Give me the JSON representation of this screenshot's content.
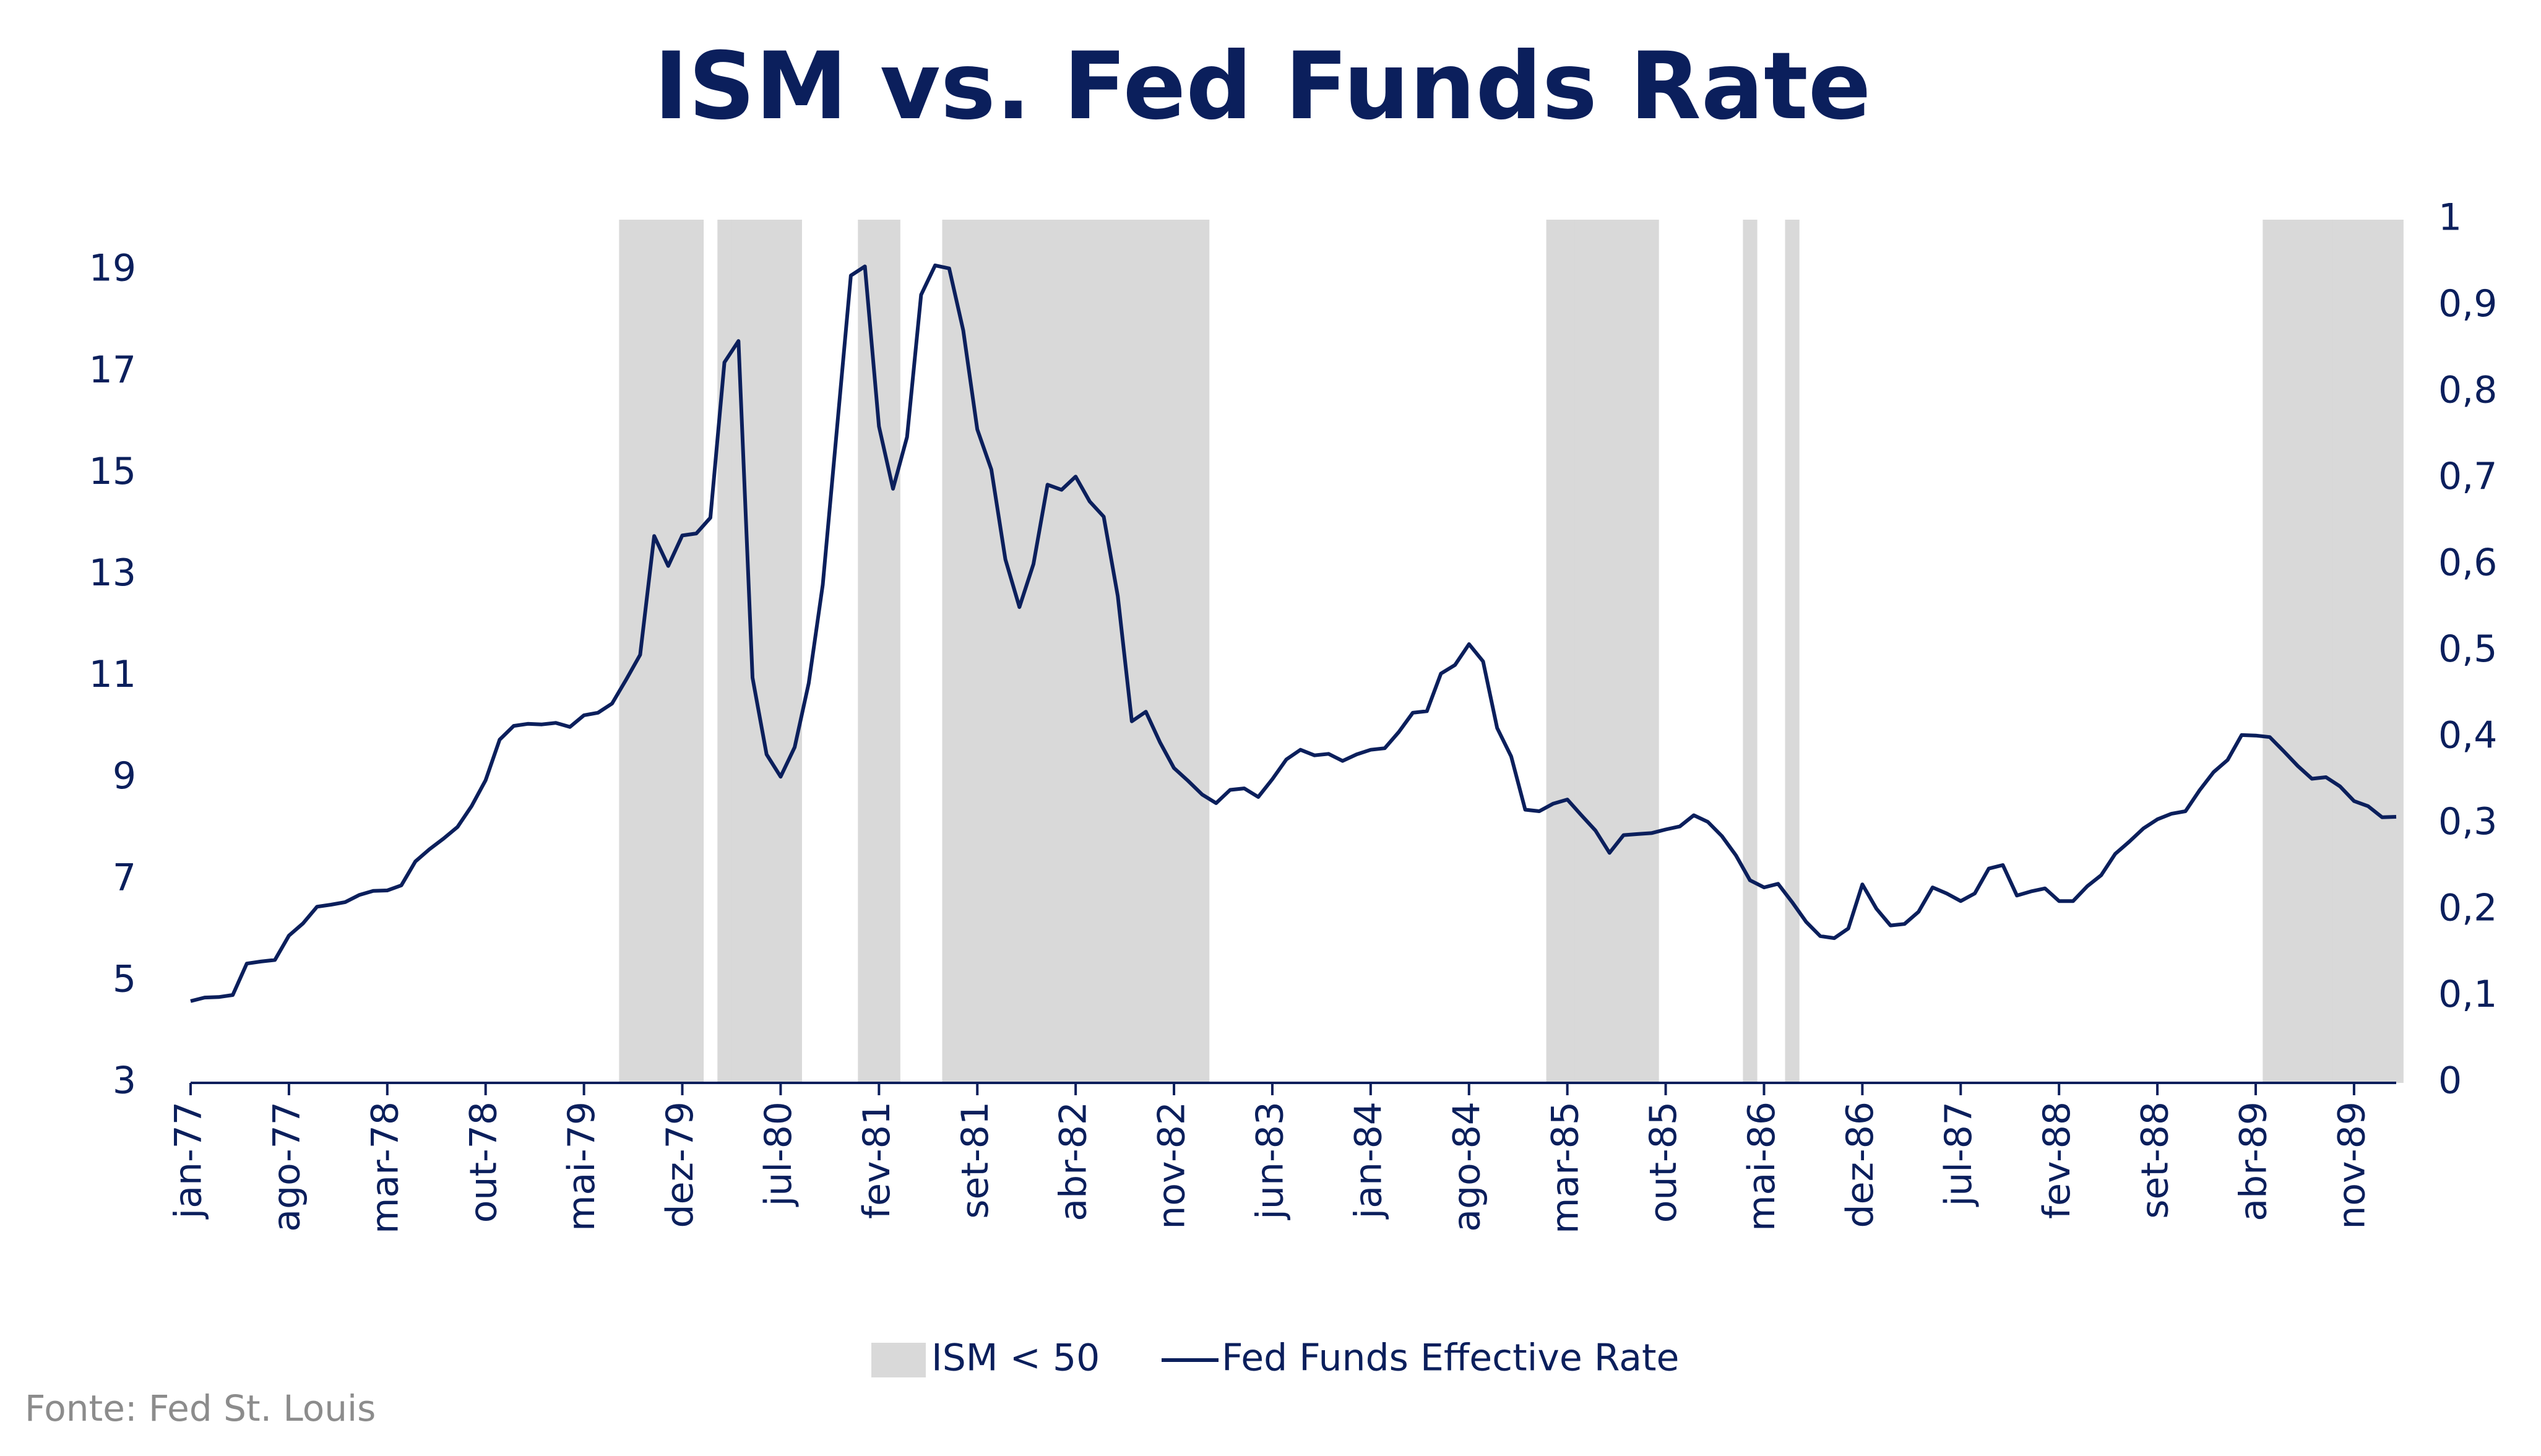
{
  "chart_data": {
    "type": "line",
    "title": "ISM vs. Fed Funds Rate",
    "source": "Fonte:  Fed St. Louis",
    "categories": [
      "jan-77",
      null,
      null,
      null,
      null,
      null,
      null,
      "ago-77",
      null,
      null,
      null,
      null,
      null,
      null,
      "mar-78",
      null,
      null,
      null,
      null,
      null,
      null,
      "out-78",
      null,
      null,
      null,
      null,
      null,
      null,
      "mai-79",
      null,
      null,
      null,
      null,
      null,
      null,
      "dez-79",
      null,
      null,
      null,
      null,
      null,
      null,
      "jul-80",
      null,
      null,
      null,
      null,
      null,
      null,
      "fev-81",
      null,
      null,
      null,
      null,
      null,
      null,
      "set-81",
      null,
      null,
      null,
      null,
      null,
      null,
      "abr-82",
      null,
      null,
      null,
      null,
      null,
      null,
      "nov-82",
      null,
      null,
      null,
      null,
      null,
      null,
      "jun-83",
      null,
      null,
      null,
      null,
      null,
      null,
      "jan-84",
      null,
      null,
      null,
      null,
      null,
      null,
      "ago-84",
      null,
      null,
      null,
      null,
      null,
      null,
      "mar-85",
      null,
      null,
      null,
      null,
      null,
      null,
      "out-85",
      null,
      null,
      null,
      null,
      null,
      null,
      "mai-86",
      null,
      null,
      null,
      null,
      null,
      null,
      "dez-86",
      null,
      null,
      null,
      null,
      null,
      null,
      "jul-87",
      null,
      null,
      null,
      null,
      null,
      null,
      "fev-88",
      null,
      null,
      null,
      null,
      null,
      null,
      "set-88",
      null,
      null,
      null,
      null,
      null,
      null,
      "abr-89",
      null,
      null,
      null,
      null,
      null,
      null,
      "nov-89",
      null,
      null,
      null
    ],
    "series": [
      {
        "name": "ISM < 50",
        "type": "bar",
        "axis": "y2",
        "color": "#d9d9d9",
        "values": [
          0,
          0,
          0,
          0,
          0,
          0,
          0,
          0,
          0,
          0,
          0,
          0,
          0,
          0,
          0,
          0,
          0,
          0,
          0,
          0,
          0,
          0,
          0,
          0,
          0,
          0,
          0,
          0,
          0,
          0,
          0,
          1,
          1,
          1,
          1,
          1,
          1,
          0,
          1,
          1,
          1,
          1,
          1,
          1,
          0,
          0,
          0,
          0,
          1,
          1,
          1,
          0,
          0,
          0,
          1,
          1,
          1,
          1,
          1,
          1,
          1,
          1,
          1,
          1,
          1,
          1,
          1,
          1,
          1,
          1,
          1,
          1,
          1,
          0,
          0,
          0,
          0,
          0,
          0,
          0,
          0,
          0,
          0,
          0,
          0,
          0,
          0,
          0,
          0,
          0,
          0,
          0,
          0,
          0,
          0,
          0,
          0,
          1,
          1,
          1,
          1,
          1,
          1,
          1,
          1,
          0,
          0,
          0,
          0,
          0,
          0,
          1,
          0,
          0,
          1,
          0,
          0,
          0,
          0,
          0,
          0,
          0,
          0,
          0,
          0,
          0,
          0,
          0,
          0,
          0,
          0,
          0,
          0,
          0,
          0,
          0,
          0,
          0,
          0,
          0,
          0,
          0,
          0,
          0,
          0,
          0,
          0,
          0,
          1,
          1,
          1,
          1,
          1,
          1,
          1,
          1,
          1,
          1
        ]
      },
      {
        "name": "Fed Funds Effective Rate",
        "type": "line",
        "color": "#0b1f5c",
        "values": [
          4.61,
          4.68,
          4.69,
          4.73,
          5.35,
          5.39,
          5.42,
          5.9,
          6.14,
          6.47,
          6.51,
          6.56,
          6.7,
          6.78,
          6.79,
          6.89,
          7.36,
          7.6,
          7.81,
          8.04,
          8.45,
          8.96,
          9.76,
          10.03,
          10.07,
          10.06,
          10.09,
          10.01,
          10.24,
          10.29,
          10.47,
          10.94,
          11.43,
          13.77,
          13.18,
          13.78,
          13.82,
          14.13,
          17.19,
          17.61,
          10.98,
          9.47,
          9.03,
          9.61,
          10.87,
          12.81,
          15.85,
          18.9,
          19.08,
          15.93,
          14.7,
          15.72,
          18.52,
          19.1,
          19.04,
          17.82,
          15.87,
          15.08,
          13.31,
          12.37,
          13.22,
          14.78,
          14.68,
          14.94,
          14.45,
          14.15,
          12.59,
          10.12,
          10.31,
          9.71,
          9.2,
          8.95,
          8.68,
          8.51,
          8.77,
          8.8,
          8.63,
          8.98,
          9.37,
          9.56,
          9.45,
          9.48,
          9.34,
          9.47,
          9.56,
          9.59,
          9.91,
          10.29,
          10.32,
          11.06,
          11.23,
          11.64,
          11.3,
          9.99,
          9.43,
          8.38,
          8.35,
          8.5,
          8.58,
          8.27,
          7.97,
          7.53,
          7.88,
          7.9,
          7.92,
          7.99,
          8.05,
          8.27,
          8.14,
          7.86,
          7.48,
          6.99,
          6.85,
          6.92,
          6.56,
          6.17,
          5.89,
          5.85,
          6.04,
          6.91,
          6.43,
          6.1,
          6.13,
          6.37,
          6.85,
          6.73,
          6.58,
          6.73,
          7.22,
          7.29,
          6.69,
          6.77,
          6.83,
          6.58,
          6.58,
          6.87,
          7.09,
          7.51,
          7.75,
          8.01,
          8.19,
          8.3,
          8.35,
          8.76,
          9.12,
          9.36,
          9.85,
          9.84,
          9.81,
          9.53,
          9.24,
          8.99,
          9.02,
          8.84,
          8.55,
          8.45,
          8.23,
          8.24
        ]
      }
    ],
    "ylim": [
      3,
      20
    ],
    "yticks": [
      3,
      5,
      7,
      9,
      11,
      13,
      15,
      17,
      19
    ],
    "y2lim": [
      0,
      1
    ],
    "y2ticks": [
      0,
      {
        "value": 0.1,
        "label": "0,1"
      },
      {
        "value": 0.2,
        "label": "0,2"
      },
      {
        "value": 0.3,
        "label": "0,3"
      },
      {
        "value": 0.4,
        "label": "0,4"
      },
      {
        "value": 0.5,
        "label": "0,5"
      },
      {
        "value": 0.6,
        "label": "0,6"
      },
      {
        "value": 0.7,
        "label": "0,7"
      },
      {
        "value": 0.8,
        "label": "0,8"
      },
      {
        "value": 0.9,
        "label": "0,9"
      },
      1
    ],
    "legend": "bottom",
    "grid": false
  }
}
